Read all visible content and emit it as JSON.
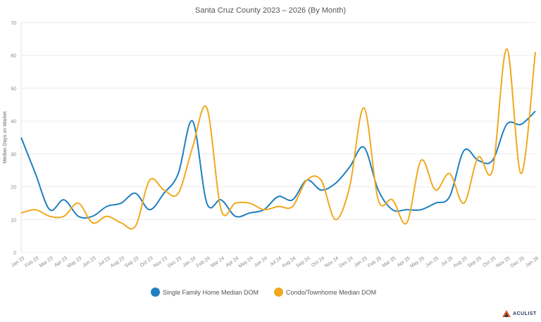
{
  "chart_data": {
    "type": "line",
    "title": "Santa Cruz County 2023 – 2026 (By Month)",
    "xlabel": "",
    "ylabel": "Median Days on Market",
    "ylim": [
      0,
      70
    ],
    "yticks": [
      0,
      10,
      20,
      30,
      40,
      50,
      60,
      70
    ],
    "grid": true,
    "legend_position": "bottom",
    "categories": [
      "Jan 23",
      "Feb 23",
      "Mar 23",
      "Apr 23",
      "May 23",
      "Jun 23",
      "Jul 23",
      "Aug 23",
      "Sep 23",
      "Oct 23",
      "Nov 23",
      "Dec 23",
      "Jan 24",
      "Feb 24",
      "Mar 24",
      "Apr 24",
      "May 24",
      "Jun 24",
      "Jul 24",
      "Aug 24",
      "Sep 24",
      "Oct 24",
      "Nov 24",
      "Dec 24",
      "Jan 25",
      "Feb 25",
      "Mar 25",
      "Apr 25",
      "May 25",
      "Jun 25",
      "Jul 25",
      "Aug 25",
      "Sep 25",
      "Oct 25",
      "Nov 25",
      "Dec 25",
      "Jan 26"
    ],
    "series": [
      {
        "name": "Single Family Home Median DOM",
        "color": "#1f7fc0",
        "values": [
          35,
          24,
          13,
          16,
          11,
          11,
          14,
          15,
          18,
          13,
          18,
          24,
          40,
          15,
          16,
          11,
          12,
          13,
          17,
          16,
          22,
          19,
          21,
          26,
          32,
          19,
          13,
          13,
          13,
          15,
          17,
          31,
          28,
          28,
          39,
          39,
          43
        ]
      },
      {
        "name": "Condo/Townhome Median DOM",
        "color": "#f0a91e",
        "values": [
          12,
          13,
          11,
          11,
          15,
          9,
          11,
          9,
          8,
          22,
          19,
          18,
          32,
          44,
          13,
          15,
          15,
          13,
          14,
          14,
          22,
          22,
          10,
          20,
          44,
          16,
          16,
          9,
          28,
          19,
          24,
          15,
          29,
          25,
          62,
          24,
          61
        ]
      }
    ]
  },
  "brand": {
    "logo_text": "ACULIST"
  }
}
